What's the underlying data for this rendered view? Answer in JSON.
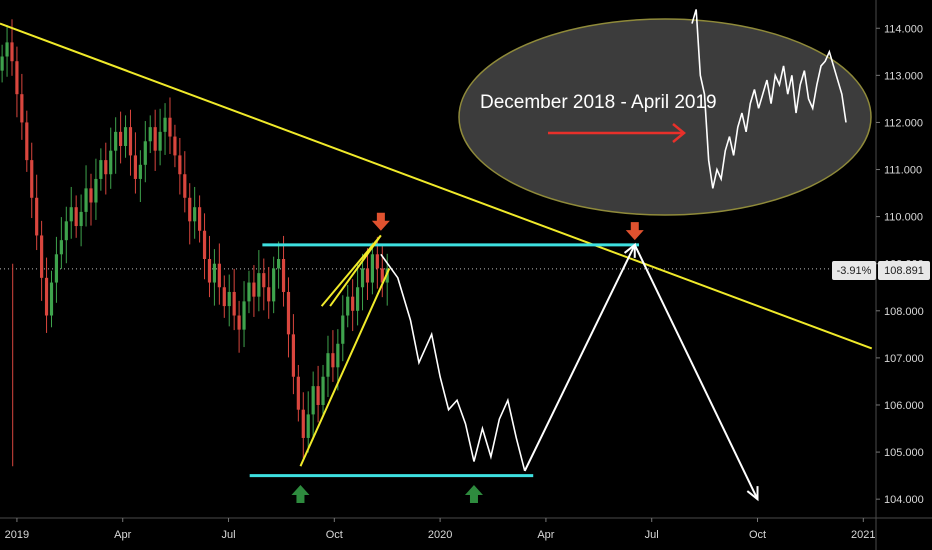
{
  "chart_data": {
    "type": "candlestick",
    "title": "",
    "xlabel": "",
    "ylabel": "",
    "ylim": [
      103.6,
      114.6
    ],
    "grid": false,
    "colors": {
      "background": "#000000",
      "up": "#3fa34d",
      "down": "#d9463e",
      "trendline": "#f0ea2a",
      "support_resistance": "#3ee0e0",
      "projection": "#ffffff",
      "marker_down": "#e0522f",
      "marker_up": "#2e8b3e",
      "inset_fill": "#3c3c3c",
      "inset_border": "#8f8a3a",
      "inset_arrow": "#e8302a"
    },
    "x_ticks": [
      "2019",
      "Apr",
      "Jul",
      "Oct",
      "2020",
      "Apr",
      "Jul",
      "Oct",
      "2021"
    ],
    "y_ticks": [
      "114.000",
      "113.000",
      "112.000",
      "111.000",
      "110.000",
      "109.000",
      "108.000",
      "107.000",
      "106.000",
      "105.000",
      "104.000"
    ],
    "current_price": {
      "change": "-3.91%",
      "value": "108.891"
    },
    "candle_closes": [
      113.4,
      113.7,
      113.3,
      112.6,
      112.0,
      111.2,
      110.4,
      109.6,
      108.7,
      107.9,
      108.6,
      109.2,
      109.5,
      109.9,
      110.2,
      109.8,
      110.1,
      110.6,
      110.3,
      110.8,
      111.2,
      110.9,
      111.4,
      111.8,
      111.5,
      111.9,
      111.3,
      110.8,
      111.1,
      111.6,
      111.9,
      111.4,
      111.8,
      112.1,
      111.7,
      111.3,
      110.9,
      110.4,
      109.9,
      110.2,
      109.7,
      109.1,
      108.6,
      109.0,
      108.5,
      108.1,
      108.4,
      107.9,
      107.6,
      108.2,
      108.6,
      108.3,
      108.8,
      108.5,
      108.2,
      108.9,
      109.1,
      108.4,
      107.5,
      106.6,
      105.9,
      105.3,
      105.8,
      106.4,
      106.0,
      106.6,
      107.1,
      106.8,
      107.3,
      107.9,
      108.3,
      108.0,
      108.5,
      108.9,
      108.6,
      109.2,
      108.9,
      108.6,
      108.9
    ],
    "projection_path": [
      [
        2019.86,
        109.2
      ],
      [
        2019.9,
        108.7
      ],
      [
        2019.93,
        107.8
      ],
      [
        2019.95,
        106.9
      ],
      [
        2019.98,
        107.5
      ],
      [
        2020.0,
        106.6
      ],
      [
        2020.02,
        105.9
      ],
      [
        2020.04,
        106.1
      ],
      [
        2020.06,
        105.6
      ],
      [
        2020.08,
        104.8
      ],
      [
        2020.1,
        105.5
      ],
      [
        2020.12,
        104.9
      ],
      [
        2020.14,
        105.7
      ],
      [
        2020.16,
        106.1
      ],
      [
        2020.18,
        105.3
      ],
      [
        2020.2,
        104.6
      ],
      [
        2020.46,
        109.4
      ],
      [
        2020.75,
        104.0
      ]
    ],
    "trendline": [
      [
        2018.96,
        114.1
      ],
      [
        2021.02,
        107.2
      ]
    ],
    "resistance_line": {
      "from": 2019.58,
      "to": 2020.47,
      "y": 109.4
    },
    "support_line": {
      "from": 2019.55,
      "to": 2020.22,
      "y": 104.5
    },
    "wedge_lower": [
      [
        2019.67,
        104.7
      ],
      [
        2019.88,
        108.9
      ]
    ],
    "wedge_upper": [
      [
        2019.72,
        108.1
      ],
      [
        2019.86,
        109.6
      ]
    ],
    "markers": [
      {
        "type": "down",
        "x": 2019.86,
        "y": 109.7
      },
      {
        "type": "down",
        "x": 2020.46,
        "y": 109.5
      },
      {
        "type": "up",
        "x": 2019.67,
        "y": 104.3
      },
      {
        "type": "up",
        "x": 2020.08,
        "y": 104.3
      }
    ],
    "inset": {
      "label": "December 2018 - April 2019",
      "series": [
        114.1,
        114.4,
        113.0,
        112.6,
        111.2,
        110.6,
        111.0,
        110.8,
        111.4,
        111.7,
        111.3,
        111.9,
        112.2,
        111.8,
        112.4,
        112.7,
        112.3,
        112.6,
        112.9,
        112.4,
        113.0,
        112.8,
        113.2,
        112.6,
        113.0,
        112.2,
        112.8,
        113.1,
        112.5,
        112.3,
        112.8,
        113.2,
        113.3,
        113.5,
        113.2,
        112.9,
        112.6,
        112.0
      ]
    }
  }
}
